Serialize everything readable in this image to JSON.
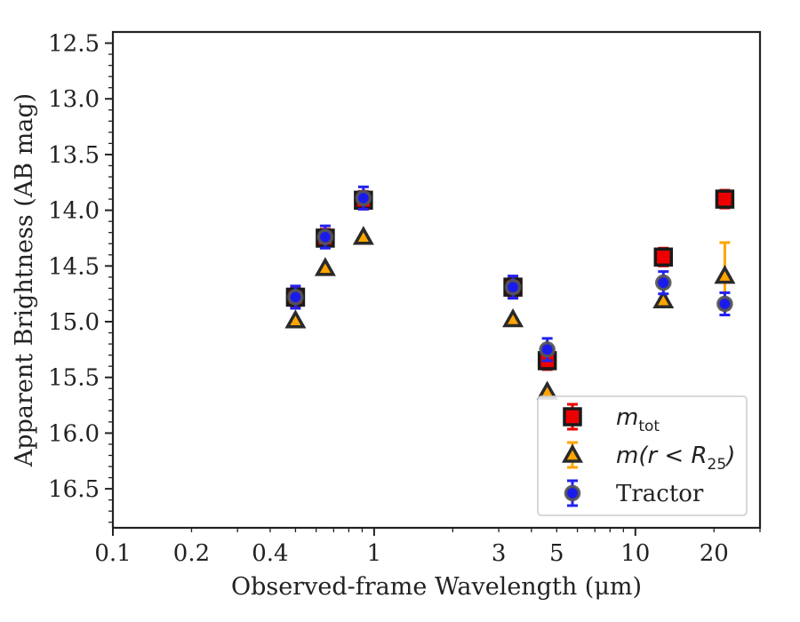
{
  "chart_data": {
    "type": "scatter",
    "xlabel": "Observed-frame Wavelength (μm)",
    "ylabel": "Apparent Brightness (AB mag)",
    "xscale": "log",
    "yaxis_inverted": true,
    "xlim": [
      0.1,
      30
    ],
    "ylim": [
      16.85,
      12.4
    ],
    "x_tick_labels": [
      "0.1",
      "0.2",
      "0.4",
      "1",
      "3",
      "5",
      "10",
      "20"
    ],
    "x_tick_values": [
      0.1,
      0.2,
      0.4,
      1,
      3,
      5,
      10,
      20
    ],
    "y_ticks": [
      12.5,
      13.0,
      13.5,
      14.0,
      14.5,
      15.0,
      15.5,
      16.0,
      16.5
    ],
    "y_tick_labels": [
      "12.5",
      "13.0",
      "13.5",
      "14.0",
      "14.5",
      "15.0",
      "15.5",
      "16.0",
      "16.5"
    ],
    "legend_position": "lower right",
    "series": [
      {
        "name": "m_tot",
        "legend_label": {
          "main": "m",
          "sub": "tot"
        },
        "marker": "square",
        "color": "#ee0000",
        "errbar_color": "#ee0000",
        "points": [
          {
            "x": 0.5,
            "y": 14.78,
            "err": 0.08
          },
          {
            "x": 0.65,
            "y": 14.25,
            "err": 0.08
          },
          {
            "x": 0.91,
            "y": 13.91,
            "err": 0.08
          },
          {
            "x": 3.4,
            "y": 14.69,
            "err": 0.08
          },
          {
            "x": 4.6,
            "y": 15.35,
            "err": 0.08
          },
          {
            "x": 12.8,
            "y": 14.42,
            "err": 0.08
          },
          {
            "x": 22.0,
            "y": 13.9,
            "err": 0.08
          }
        ]
      },
      {
        "name": "m(r < R_25)",
        "legend_label": {
          "main": "m(r < R",
          "sub": "25",
          "tail": ")"
        },
        "marker": "triangle",
        "color": "#ffa500",
        "errbar_color": "#ffa500",
        "points": [
          {
            "x": 0.5,
            "y": 14.99,
            "err": 0.0
          },
          {
            "x": 0.65,
            "y": 14.52,
            "err": 0.0
          },
          {
            "x": 0.91,
            "y": 14.24,
            "err": 0.0
          },
          {
            "x": 3.4,
            "y": 14.98,
            "err": 0.0
          },
          {
            "x": 4.6,
            "y": 15.63,
            "err": 0.0
          },
          {
            "x": 12.8,
            "y": 14.81,
            "err": 0.0
          },
          {
            "x": 22.0,
            "y": 14.59,
            "err": 0.3
          }
        ]
      },
      {
        "name": "Tractor",
        "legend_label": {
          "main": "Tractor"
        },
        "marker": "circle",
        "color": "#1a1aee",
        "errbar_color": "#2222ee",
        "points": [
          {
            "x": 0.5,
            "y": 14.78,
            "err": 0.1
          },
          {
            "x": 0.65,
            "y": 14.24,
            "err": 0.1
          },
          {
            "x": 0.91,
            "y": 13.89,
            "err": 0.1
          },
          {
            "x": 3.4,
            "y": 14.69,
            "err": 0.1
          },
          {
            "x": 4.6,
            "y": 15.25,
            "err": 0.1
          },
          {
            "x": 12.8,
            "y": 14.65,
            "err": 0.1
          },
          {
            "x": 22.0,
            "y": 14.84,
            "err": 0.1
          }
        ]
      }
    ]
  }
}
